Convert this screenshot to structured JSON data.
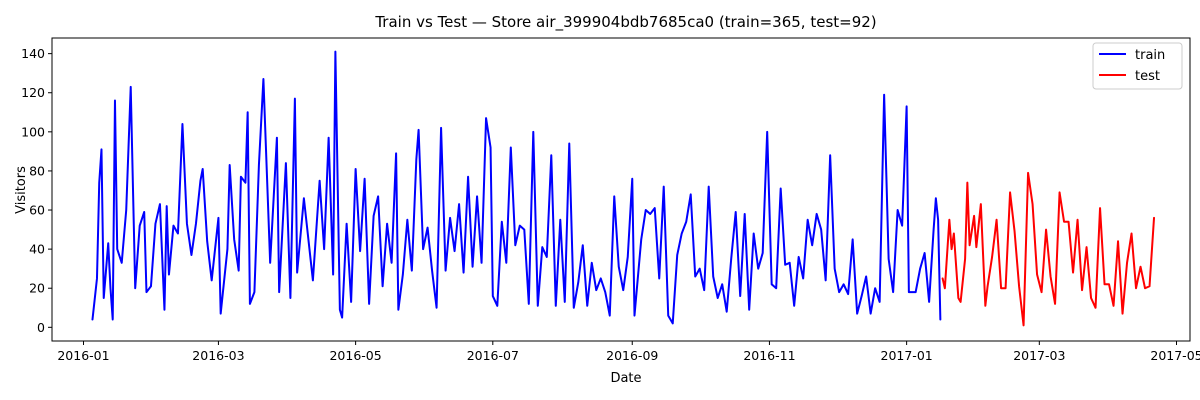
{
  "chart_data": {
    "type": "line",
    "title": "Train vs Test — Store air_399904bdb7685ca0  (train=365, test=92)",
    "xlabel": "Date",
    "ylabel": "Visitors",
    "x_range": [
      "2015-12-18",
      "2017-05-07"
    ],
    "ylim": [
      -7,
      148
    ],
    "x_ticks": [
      "2016-01",
      "2016-03",
      "2016-05",
      "2016-07",
      "2016-09",
      "2016-11",
      "2017-01",
      "2017-03",
      "2017-05"
    ],
    "y_ticks": [
      0,
      20,
      40,
      60,
      80,
      100,
      120,
      140
    ],
    "grid": false,
    "legend_position": "top-right",
    "colors": {
      "train": "#0000ff",
      "test": "#ff0000"
    },
    "series": [
      {
        "name": "train",
        "start_date": "2016-01-05",
        "end_date": "2017-01-16",
        "keypoints": [
          [
            "2016-01-05",
            4
          ],
          [
            "2016-01-07",
            25
          ],
          [
            "2016-01-08",
            74
          ],
          [
            "2016-01-09",
            91
          ],
          [
            "2016-01-10",
            15
          ],
          [
            "2016-01-12",
            43
          ],
          [
            "2016-01-13",
            20
          ],
          [
            "2016-01-14",
            4
          ],
          [
            "2016-01-15",
            116
          ],
          [
            "2016-01-16",
            40
          ],
          [
            "2016-01-18",
            33
          ],
          [
            "2016-01-20",
            60
          ],
          [
            "2016-01-22",
            123
          ],
          [
            "2016-01-24",
            20
          ],
          [
            "2016-01-26",
            52
          ],
          [
            "2016-01-28",
            59
          ],
          [
            "2016-01-29",
            18
          ],
          [
            "2016-01-31",
            21
          ],
          [
            "2016-02-02",
            53
          ],
          [
            "2016-02-04",
            63
          ],
          [
            "2016-02-06",
            9
          ],
          [
            "2016-02-07",
            62
          ],
          [
            "2016-02-08",
            27
          ],
          [
            "2016-02-10",
            52
          ],
          [
            "2016-02-12",
            48
          ],
          [
            "2016-02-14",
            104
          ],
          [
            "2016-02-16",
            53
          ],
          [
            "2016-02-18",
            37
          ],
          [
            "2016-02-20",
            53
          ],
          [
            "2016-02-22",
            75
          ],
          [
            "2016-02-23",
            81
          ],
          [
            "2016-02-25",
            44
          ],
          [
            "2016-02-27",
            24
          ],
          [
            "2016-03-01",
            56
          ],
          [
            "2016-03-02",
            7
          ],
          [
            "2016-03-05",
            40
          ],
          [
            "2016-03-06",
            83
          ],
          [
            "2016-03-08",
            45
          ],
          [
            "2016-03-10",
            29
          ],
          [
            "2016-03-11",
            77
          ],
          [
            "2016-03-13",
            74
          ],
          [
            "2016-03-14",
            110
          ],
          [
            "2016-03-15",
            12
          ],
          [
            "2016-03-17",
            18
          ],
          [
            "2016-03-19",
            83
          ],
          [
            "2016-03-21",
            127
          ],
          [
            "2016-03-24",
            33
          ],
          [
            "2016-03-27",
            97
          ],
          [
            "2016-03-28",
            18
          ],
          [
            "2016-03-31",
            84
          ],
          [
            "2016-04-02",
            15
          ],
          [
            "2016-04-04",
            117
          ],
          [
            "2016-04-05",
            28
          ],
          [
            "2016-04-08",
            66
          ],
          [
            "2016-04-10",
            45
          ],
          [
            "2016-04-12",
            24
          ],
          [
            "2016-04-15",
            75
          ],
          [
            "2016-04-17",
            40
          ],
          [
            "2016-04-19",
            97
          ],
          [
            "2016-04-21",
            27
          ],
          [
            "2016-04-22",
            141
          ],
          [
            "2016-04-24",
            9
          ],
          [
            "2016-04-25",
            5
          ],
          [
            "2016-04-27",
            53
          ],
          [
            "2016-04-29",
            13
          ],
          [
            "2016-05-01",
            81
          ],
          [
            "2016-05-03",
            39
          ],
          [
            "2016-05-05",
            76
          ],
          [
            "2016-05-07",
            12
          ],
          [
            "2016-05-09",
            57
          ],
          [
            "2016-05-11",
            67
          ],
          [
            "2016-05-13",
            21
          ],
          [
            "2016-05-15",
            53
          ],
          [
            "2016-05-17",
            33
          ],
          [
            "2016-05-19",
            89
          ],
          [
            "2016-05-20",
            9
          ],
          [
            "2016-05-22",
            27
          ],
          [
            "2016-05-24",
            55
          ],
          [
            "2016-05-26",
            29
          ],
          [
            "2016-05-28",
            86
          ],
          [
            "2016-05-29",
            101
          ],
          [
            "2016-05-31",
            40
          ],
          [
            "2016-06-02",
            51
          ],
          [
            "2016-06-04",
            29
          ],
          [
            "2016-06-06",
            10
          ],
          [
            "2016-06-08",
            102
          ],
          [
            "2016-06-10",
            29
          ],
          [
            "2016-06-12",
            56
          ],
          [
            "2016-06-14",
            39
          ],
          [
            "2016-06-16",
            63
          ],
          [
            "2016-06-18",
            28
          ],
          [
            "2016-06-20",
            77
          ],
          [
            "2016-06-22",
            31
          ],
          [
            "2016-06-24",
            67
          ],
          [
            "2016-06-26",
            33
          ],
          [
            "2016-06-28",
            107
          ],
          [
            "2016-06-30",
            92
          ],
          [
            "2016-07-01",
            16
          ],
          [
            "2016-07-03",
            11
          ],
          [
            "2016-07-05",
            54
          ],
          [
            "2016-07-07",
            33
          ],
          [
            "2016-07-09",
            92
          ],
          [
            "2016-07-11",
            42
          ],
          [
            "2016-07-13",
            52
          ],
          [
            "2016-07-15",
            50
          ],
          [
            "2016-07-17",
            12
          ],
          [
            "2016-07-19",
            100
          ],
          [
            "2016-07-21",
            11
          ],
          [
            "2016-07-23",
            41
          ],
          [
            "2016-07-25",
            36
          ],
          [
            "2016-07-27",
            88
          ],
          [
            "2016-07-29",
            11
          ],
          [
            "2016-07-31",
            55
          ],
          [
            "2016-08-02",
            13
          ],
          [
            "2016-08-04",
            94
          ],
          [
            "2016-08-06",
            10
          ],
          [
            "2016-08-08",
            23
          ],
          [
            "2016-08-10",
            42
          ],
          [
            "2016-08-12",
            11
          ],
          [
            "2016-08-14",
            33
          ],
          [
            "2016-08-16",
            19
          ],
          [
            "2016-08-18",
            25
          ],
          [
            "2016-08-20",
            18
          ],
          [
            "2016-08-22",
            6
          ],
          [
            "2016-08-24",
            67
          ],
          [
            "2016-08-26",
            31
          ],
          [
            "2016-08-28",
            19
          ],
          [
            "2016-08-30",
            36
          ],
          [
            "2016-09-01",
            76
          ],
          [
            "2016-09-02",
            6
          ],
          [
            "2016-09-05",
            45
          ],
          [
            "2016-09-07",
            60
          ],
          [
            "2016-09-09",
            58
          ],
          [
            "2016-09-11",
            61
          ],
          [
            "2016-09-13",
            25
          ],
          [
            "2016-09-15",
            72
          ],
          [
            "2016-09-17",
            6
          ],
          [
            "2016-09-19",
            2
          ],
          [
            "2016-09-21",
            37
          ],
          [
            "2016-09-23",
            48
          ],
          [
            "2016-09-25",
            54
          ],
          [
            "2016-09-27",
            68
          ],
          [
            "2016-09-29",
            26
          ],
          [
            "2016-10-01",
            30
          ],
          [
            "2016-10-03",
            19
          ],
          [
            "2016-10-05",
            72
          ],
          [
            "2016-10-07",
            26
          ],
          [
            "2016-10-09",
            15
          ],
          [
            "2016-10-11",
            22
          ],
          [
            "2016-10-13",
            8
          ],
          [
            "2016-10-15",
            35
          ],
          [
            "2016-10-17",
            59
          ],
          [
            "2016-10-19",
            16
          ],
          [
            "2016-10-21",
            58
          ],
          [
            "2016-10-23",
            9
          ],
          [
            "2016-10-25",
            48
          ],
          [
            "2016-10-27",
            30
          ],
          [
            "2016-10-29",
            38
          ],
          [
            "2016-10-31",
            100
          ],
          [
            "2016-11-02",
            22
          ],
          [
            "2016-11-04",
            20
          ],
          [
            "2016-11-06",
            71
          ],
          [
            "2016-11-08",
            32
          ],
          [
            "2016-11-10",
            33
          ],
          [
            "2016-11-12",
            11
          ],
          [
            "2016-11-14",
            36
          ],
          [
            "2016-11-16",
            25
          ],
          [
            "2016-11-18",
            55
          ],
          [
            "2016-11-20",
            42
          ],
          [
            "2016-11-22",
            58
          ],
          [
            "2016-11-24",
            50
          ],
          [
            "2016-11-26",
            24
          ],
          [
            "2016-11-28",
            88
          ],
          [
            "2016-11-30",
            30
          ],
          [
            "2016-12-02",
            18
          ],
          [
            "2016-12-04",
            22
          ],
          [
            "2016-12-06",
            17
          ],
          [
            "2016-12-08",
            45
          ],
          [
            "2016-12-10",
            7
          ],
          [
            "2016-12-12",
            16
          ],
          [
            "2016-12-14",
            26
          ],
          [
            "2016-12-16",
            7
          ],
          [
            "2016-12-18",
            20
          ],
          [
            "2016-12-20",
            13
          ],
          [
            "2016-12-22",
            119
          ],
          [
            "2016-12-24",
            35
          ],
          [
            "2016-12-26",
            18
          ],
          [
            "2016-12-28",
            60
          ],
          [
            "2016-12-30",
            52
          ],
          [
            "2017-01-01",
            113
          ],
          [
            "2017-01-02",
            18
          ],
          [
            "2017-01-05",
            18
          ],
          [
            "2017-01-07",
            30
          ],
          [
            "2017-01-09",
            38
          ],
          [
            "2017-01-11",
            13
          ],
          [
            "2017-01-13",
            50
          ],
          [
            "2017-01-14",
            66
          ],
          [
            "2017-01-15",
            55
          ],
          [
            "2017-01-16",
            4
          ]
        ]
      },
      {
        "name": "test",
        "start_date": "2017-01-17",
        "end_date": "2017-04-21",
        "keypoints": [
          [
            "2017-01-17",
            25
          ],
          [
            "2017-01-18",
            20
          ],
          [
            "2017-01-20",
            55
          ],
          [
            "2017-01-21",
            40
          ],
          [
            "2017-01-22",
            48
          ],
          [
            "2017-01-24",
            15
          ],
          [
            "2017-01-25",
            13
          ],
          [
            "2017-01-27",
            35
          ],
          [
            "2017-01-28",
            74
          ],
          [
            "2017-01-29",
            42
          ],
          [
            "2017-01-31",
            57
          ],
          [
            "2017-02-01",
            41
          ],
          [
            "2017-02-03",
            63
          ],
          [
            "2017-02-05",
            11
          ],
          [
            "2017-02-06",
            21
          ],
          [
            "2017-02-08",
            36
          ],
          [
            "2017-02-10",
            55
          ],
          [
            "2017-02-12",
            20
          ],
          [
            "2017-02-14",
            20
          ],
          [
            "2017-02-16",
            69
          ],
          [
            "2017-02-18",
            49
          ],
          [
            "2017-02-20",
            21
          ],
          [
            "2017-02-22",
            1
          ],
          [
            "2017-02-24",
            79
          ],
          [
            "2017-02-26",
            63
          ],
          [
            "2017-02-28",
            27
          ],
          [
            "2017-03-02",
            18
          ],
          [
            "2017-03-04",
            50
          ],
          [
            "2017-03-06",
            26
          ],
          [
            "2017-03-08",
            12
          ],
          [
            "2017-03-10",
            69
          ],
          [
            "2017-03-12",
            54
          ],
          [
            "2017-03-14",
            54
          ],
          [
            "2017-03-16",
            28
          ],
          [
            "2017-03-18",
            55
          ],
          [
            "2017-03-20",
            19
          ],
          [
            "2017-03-22",
            41
          ],
          [
            "2017-03-24",
            15
          ],
          [
            "2017-03-26",
            10
          ],
          [
            "2017-03-28",
            61
          ],
          [
            "2017-03-30",
            22
          ],
          [
            "2017-04-01",
            22
          ],
          [
            "2017-04-03",
            11
          ],
          [
            "2017-04-05",
            44
          ],
          [
            "2017-04-07",
            7
          ],
          [
            "2017-04-09",
            33
          ],
          [
            "2017-04-11",
            48
          ],
          [
            "2017-04-13",
            20
          ],
          [
            "2017-04-15",
            31
          ],
          [
            "2017-04-17",
            20
          ],
          [
            "2017-04-19",
            21
          ],
          [
            "2017-04-21",
            56
          ]
        ]
      }
    ]
  }
}
